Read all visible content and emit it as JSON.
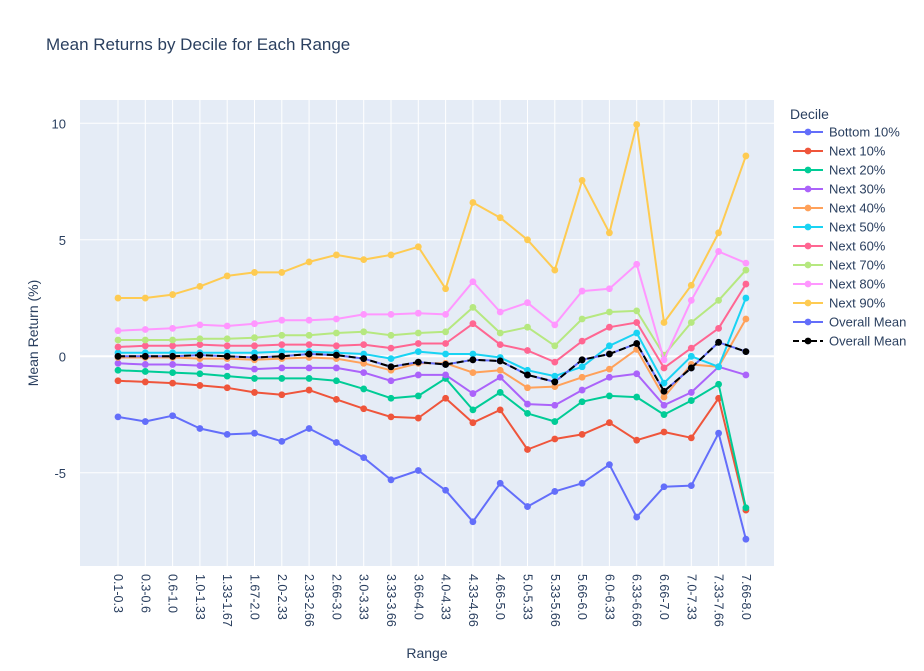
{
  "chart_data": {
    "type": "line",
    "title": "Mean Returns by Decile for Each Range",
    "xlabel": "Range",
    "ylabel": "Mean Return (%)",
    "ylim": [
      -9,
      11
    ],
    "yticks": [
      -5,
      0,
      5,
      10
    ],
    "grid": true,
    "legend_title": "Decile",
    "legend_position": "right",
    "background_color": "#e5ecf6",
    "categories": [
      "0.1-0.3",
      "0.3-0.6",
      "0.6-1.0",
      "1.0-1.33",
      "1.33-1.67",
      "1.67-2.0",
      "2.0-2.33",
      "2.33-2.66",
      "2.66-3.0",
      "3.0-3.33",
      "3.33-3.66",
      "3.66-4.0",
      "4.0-4.33",
      "4.33-4.66",
      "4.66-5.0",
      "5.0-5.33",
      "5.33-5.66",
      "5.66-6.0",
      "6.0-6.33",
      "6.33-6.66",
      "6.66-7.0",
      "7.0-7.33",
      "7.33-7.66",
      "7.66-8.0"
    ],
    "series": [
      {
        "name": "Bottom 10%",
        "color": "#636efa",
        "values": [
          -2.6,
          -2.8,
          -2.55,
          -3.1,
          -3.35,
          -3.3,
          -3.65,
          -3.1,
          -3.7,
          -4.35,
          -5.3,
          -4.9,
          -5.75,
          -7.1,
          -5.45,
          -6.45,
          -5.8,
          -5.45,
          -4.65,
          -6.9,
          -5.6,
          -5.55,
          -3.3,
          -7.85
        ]
      },
      {
        "name": "Next 10%",
        "color": "#ef553b",
        "values": [
          -1.05,
          -1.1,
          -1.15,
          -1.25,
          -1.35,
          -1.55,
          -1.65,
          -1.45,
          -1.85,
          -2.25,
          -2.6,
          -2.65,
          -1.8,
          -2.85,
          -2.3,
          -4.0,
          -3.55,
          -3.35,
          -2.85,
          -3.6,
          -3.25,
          -3.5,
          -1.8,
          -6.6
        ]
      },
      {
        "name": "Next 20%",
        "color": "#00cc96",
        "values": [
          -0.6,
          -0.65,
          -0.7,
          -0.75,
          -0.85,
          -0.95,
          -0.95,
          -0.95,
          -1.05,
          -1.4,
          -1.8,
          -1.7,
          -0.95,
          -2.3,
          -1.55,
          -2.45,
          -2.8,
          -1.95,
          -1.7,
          -1.75,
          -2.5,
          -1.9,
          -1.2,
          -6.5
        ]
      },
      {
        "name": "Next 30%",
        "color": "#ab63fa",
        "values": [
          -0.3,
          -0.35,
          -0.35,
          -0.4,
          -0.45,
          -0.55,
          -0.5,
          -0.5,
          -0.5,
          -0.7,
          -1.05,
          -0.8,
          -0.8,
          -1.6,
          -0.9,
          -2.05,
          -2.1,
          -1.45,
          -0.9,
          -0.75,
          -2.1,
          -1.55,
          -0.45,
          -0.8
        ]
      },
      {
        "name": "Next 40%",
        "color": "#ffa15a",
        "values": [
          -0.05,
          -0.05,
          -0.05,
          -0.1,
          -0.1,
          -0.15,
          -0.1,
          -0.05,
          -0.1,
          -0.3,
          -0.6,
          -0.3,
          -0.3,
          -0.7,
          -0.6,
          -1.35,
          -1.3,
          -0.9,
          -0.55,
          0.3,
          -1.75,
          -0.35,
          -0.45,
          1.6
        ]
      },
      {
        "name": "Next 50%",
        "color": "#19d3f3",
        "values": [
          0.15,
          0.15,
          0.15,
          0.15,
          0.15,
          0.15,
          0.2,
          0.2,
          0.15,
          0.1,
          -0.1,
          0.2,
          0.1,
          0.1,
          -0.05,
          -0.6,
          -0.85,
          -0.45,
          0.45,
          1.0,
          -1.15,
          0.0,
          -0.45,
          2.5
        ]
      },
      {
        "name": "Next 60%",
        "color": "#ff6692",
        "values": [
          0.4,
          0.45,
          0.45,
          0.5,
          0.45,
          0.45,
          0.5,
          0.5,
          0.45,
          0.5,
          0.35,
          0.55,
          0.55,
          1.4,
          0.5,
          0.25,
          -0.25,
          0.65,
          1.25,
          1.45,
          -0.5,
          0.35,
          1.2,
          3.1
        ]
      },
      {
        "name": "Next 70%",
        "color": "#b6e880",
        "values": [
          0.7,
          0.7,
          0.7,
          0.75,
          0.75,
          0.8,
          0.9,
          0.9,
          1.0,
          1.05,
          0.9,
          1.0,
          1.05,
          2.1,
          1.0,
          1.25,
          0.45,
          1.6,
          1.9,
          1.95,
          0.05,
          1.45,
          2.4,
          3.7
        ]
      },
      {
        "name": "Next 80%",
        "color": "#ff97ff",
        "values": [
          1.1,
          1.15,
          1.2,
          1.35,
          1.3,
          1.4,
          1.55,
          1.55,
          1.6,
          1.8,
          1.8,
          1.85,
          1.8,
          3.2,
          1.9,
          2.3,
          1.35,
          2.8,
          2.9,
          3.95,
          -0.15,
          2.4,
          4.5,
          4.0
        ]
      },
      {
        "name": "Next 90%",
        "color": "#fecb52",
        "values": [
          2.5,
          2.5,
          2.65,
          3.0,
          3.45,
          3.6,
          3.6,
          4.05,
          4.35,
          4.15,
          4.35,
          4.7,
          2.9,
          6.6,
          5.95,
          5.0,
          3.7,
          7.55,
          5.3,
          9.95,
          1.45,
          3.05,
          5.3,
          8.6
        ]
      },
      {
        "name": "Overall Mean",
        "color": "#636efa",
        "values": [
          0.0,
          0.0,
          0.0,
          0.05,
          0.0,
          -0.05,
          0.0,
          0.1,
          0.05,
          -0.1,
          -0.45,
          -0.25,
          -0.35,
          -0.15,
          -0.2,
          -0.8,
          -1.1,
          -0.15,
          0.1,
          0.55,
          -1.5,
          -0.5,
          0.6,
          0.2
        ]
      },
      {
        "name": "Overall Mean",
        "color": "#000000",
        "dashed": true,
        "values": [
          0.0,
          0.0,
          0.0,
          0.05,
          0.0,
          -0.05,
          0.0,
          0.1,
          0.05,
          -0.1,
          -0.45,
          -0.25,
          -0.35,
          -0.15,
          -0.2,
          -0.8,
          -1.1,
          -0.15,
          0.1,
          0.55,
          -1.5,
          -0.5,
          0.6,
          0.2
        ]
      }
    ]
  }
}
